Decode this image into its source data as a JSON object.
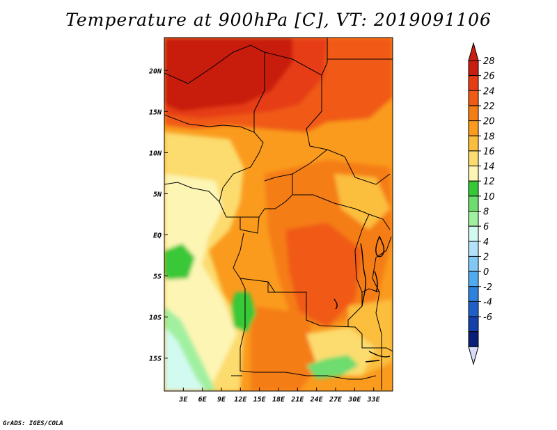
{
  "title": "Temperature at 900hPa [C], VT: 2019091106",
  "credit": "GrADS: IGES/COLA",
  "map": {
    "lon_range": [
      0,
      36
    ],
    "lat_range": [
      -19,
      24
    ],
    "lat_ticks": [
      {
        "value": 20,
        "label": "20N"
      },
      {
        "value": 15,
        "label": "15N"
      },
      {
        "value": 10,
        "label": "10N"
      },
      {
        "value": 5,
        "label": "5N"
      },
      {
        "value": 0,
        "label": "EQ"
      },
      {
        "value": -5,
        "label": "5S"
      },
      {
        "value": -10,
        "label": "10S"
      },
      {
        "value": -15,
        "label": "15S"
      }
    ],
    "lon_ticks": [
      {
        "value": 3,
        "label": "3E"
      },
      {
        "value": 6,
        "label": "6E"
      },
      {
        "value": 9,
        "label": "9E"
      },
      {
        "value": 12,
        "label": "12E"
      },
      {
        "value": 15,
        "label": "15E"
      },
      {
        "value": 18,
        "label": "18E"
      },
      {
        "value": 21,
        "label": "21E"
      },
      {
        "value": 24,
        "label": "24E"
      },
      {
        "value": 27,
        "label": "27E"
      },
      {
        "value": 30,
        "label": "30E"
      },
      {
        "value": 33,
        "label": "33E"
      }
    ]
  },
  "colorbar": {
    "labels": [
      "28",
      "26",
      "24",
      "22",
      "20",
      "18",
      "16",
      "14",
      "12",
      "10",
      "8",
      "6",
      "4",
      "2",
      "0",
      "-2",
      "-4",
      "-6"
    ],
    "colors": [
      "#c81e0f",
      "#e63c14",
      "#f05a14",
      "#f57d14",
      "#fa9b1e",
      "#fbbe3c",
      "#fcdc6e",
      "#fdf5b4",
      "#37c837",
      "#6edc6e",
      "#a0f0a0",
      "#d2faf0",
      "#b4e1fa",
      "#82c8f5",
      "#50aaf0",
      "#2d82dc",
      "#1e5fc8",
      "#1440aa",
      "#0a1e78"
    ],
    "top_arrow_color": "#c81e0f",
    "bottom_arrow_color": "#d8dcf8"
  }
}
